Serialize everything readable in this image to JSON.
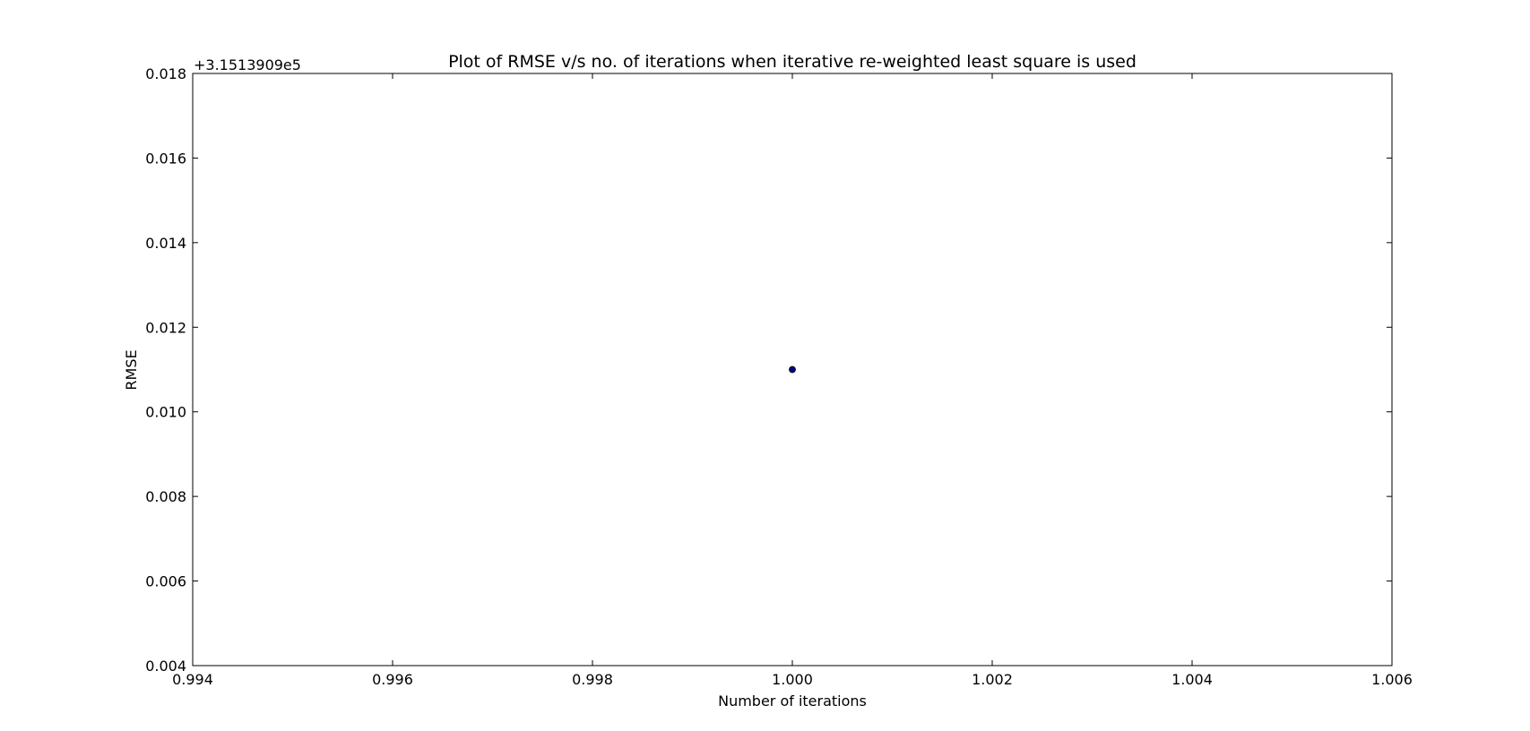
{
  "chart_data": {
    "type": "scatter",
    "title": "Plot of RMSE v/s no. of iterations when iterative re-weighted least square is used",
    "xlabel": "Number of iterations",
    "ylabel": "RMSE",
    "y_offset_label": "+3.1513909e5",
    "xlim": [
      0.994,
      1.006
    ],
    "ylim": [
      0.004,
      0.018
    ],
    "x_ticks": [
      0.994,
      0.996,
      0.998,
      1.0,
      1.002,
      1.004,
      1.006
    ],
    "x_tick_labels": [
      "0.994",
      "0.996",
      "0.998",
      "1.000",
      "1.002",
      "1.004",
      "1.006"
    ],
    "y_ticks": [
      0.004,
      0.006,
      0.008,
      0.01,
      0.012,
      0.014,
      0.016,
      0.018
    ],
    "y_tick_labels": [
      "0.004",
      "0.006",
      "0.008",
      "0.010",
      "0.012",
      "0.014",
      "0.016",
      "0.018"
    ],
    "grid": false,
    "series": [
      {
        "points": [
          {
            "x": 1.0,
            "y": 0.011
          }
        ],
        "color": "#000080"
      }
    ]
  }
}
